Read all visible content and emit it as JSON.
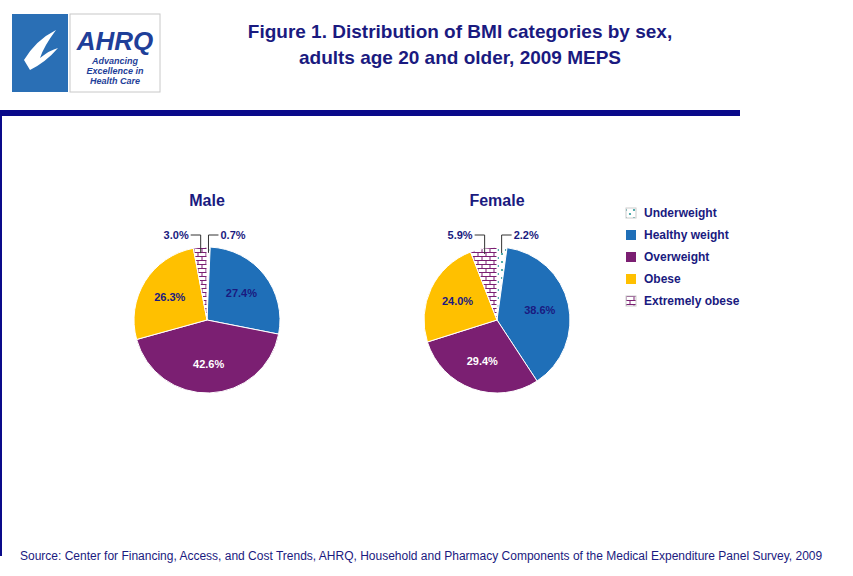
{
  "header": {
    "title": [
      "Figure 1. Distribution of BMI categories by sex,",
      "adults age 20 and older, 2009 MEPS"
    ],
    "logo": {
      "name": "AHRQ",
      "tagline": [
        "Advancing",
        "Excellence in",
        "Health Care"
      ]
    }
  },
  "chart_data": [
    {
      "type": "pie",
      "title": "Male",
      "categories": [
        "Underweight",
        "Healthy weight",
        "Overweight",
        "Obese",
        "Extremely obese"
      ],
      "values": [
        0.7,
        27.4,
        42.6,
        26.3,
        3.0
      ],
      "value_labels": [
        "0.7%",
        "27.4%",
        "42.6%",
        "26.3%",
        "3.0%"
      ],
      "colors": [
        "#2a9a9a",
        "#1f6fb8",
        "#7b1f72",
        "#ffc000",
        "#7b1f72"
      ],
      "data_labels": true
    },
    {
      "type": "pie",
      "title": "Female",
      "categories": [
        "Underweight",
        "Healthy weight",
        "Overweight",
        "Obese",
        "Extremely obese"
      ],
      "values": [
        2.2,
        38.6,
        29.4,
        24.0,
        5.9
      ],
      "value_labels": [
        "2.2%",
        "38.6%",
        "29.4%",
        "24.0%",
        "5.9%"
      ],
      "colors": [
        "#2a9a9a",
        "#1f6fb8",
        "#7b1f72",
        "#ffc000",
        "#7b1f72"
      ],
      "data_labels": true,
      "legend": "right"
    }
  ],
  "source": "Source: Center for Financing, Access, and Cost Trends, AHRQ, Household and Pharmacy Components of the Medical Expenditure Panel Survey,  2009"
}
